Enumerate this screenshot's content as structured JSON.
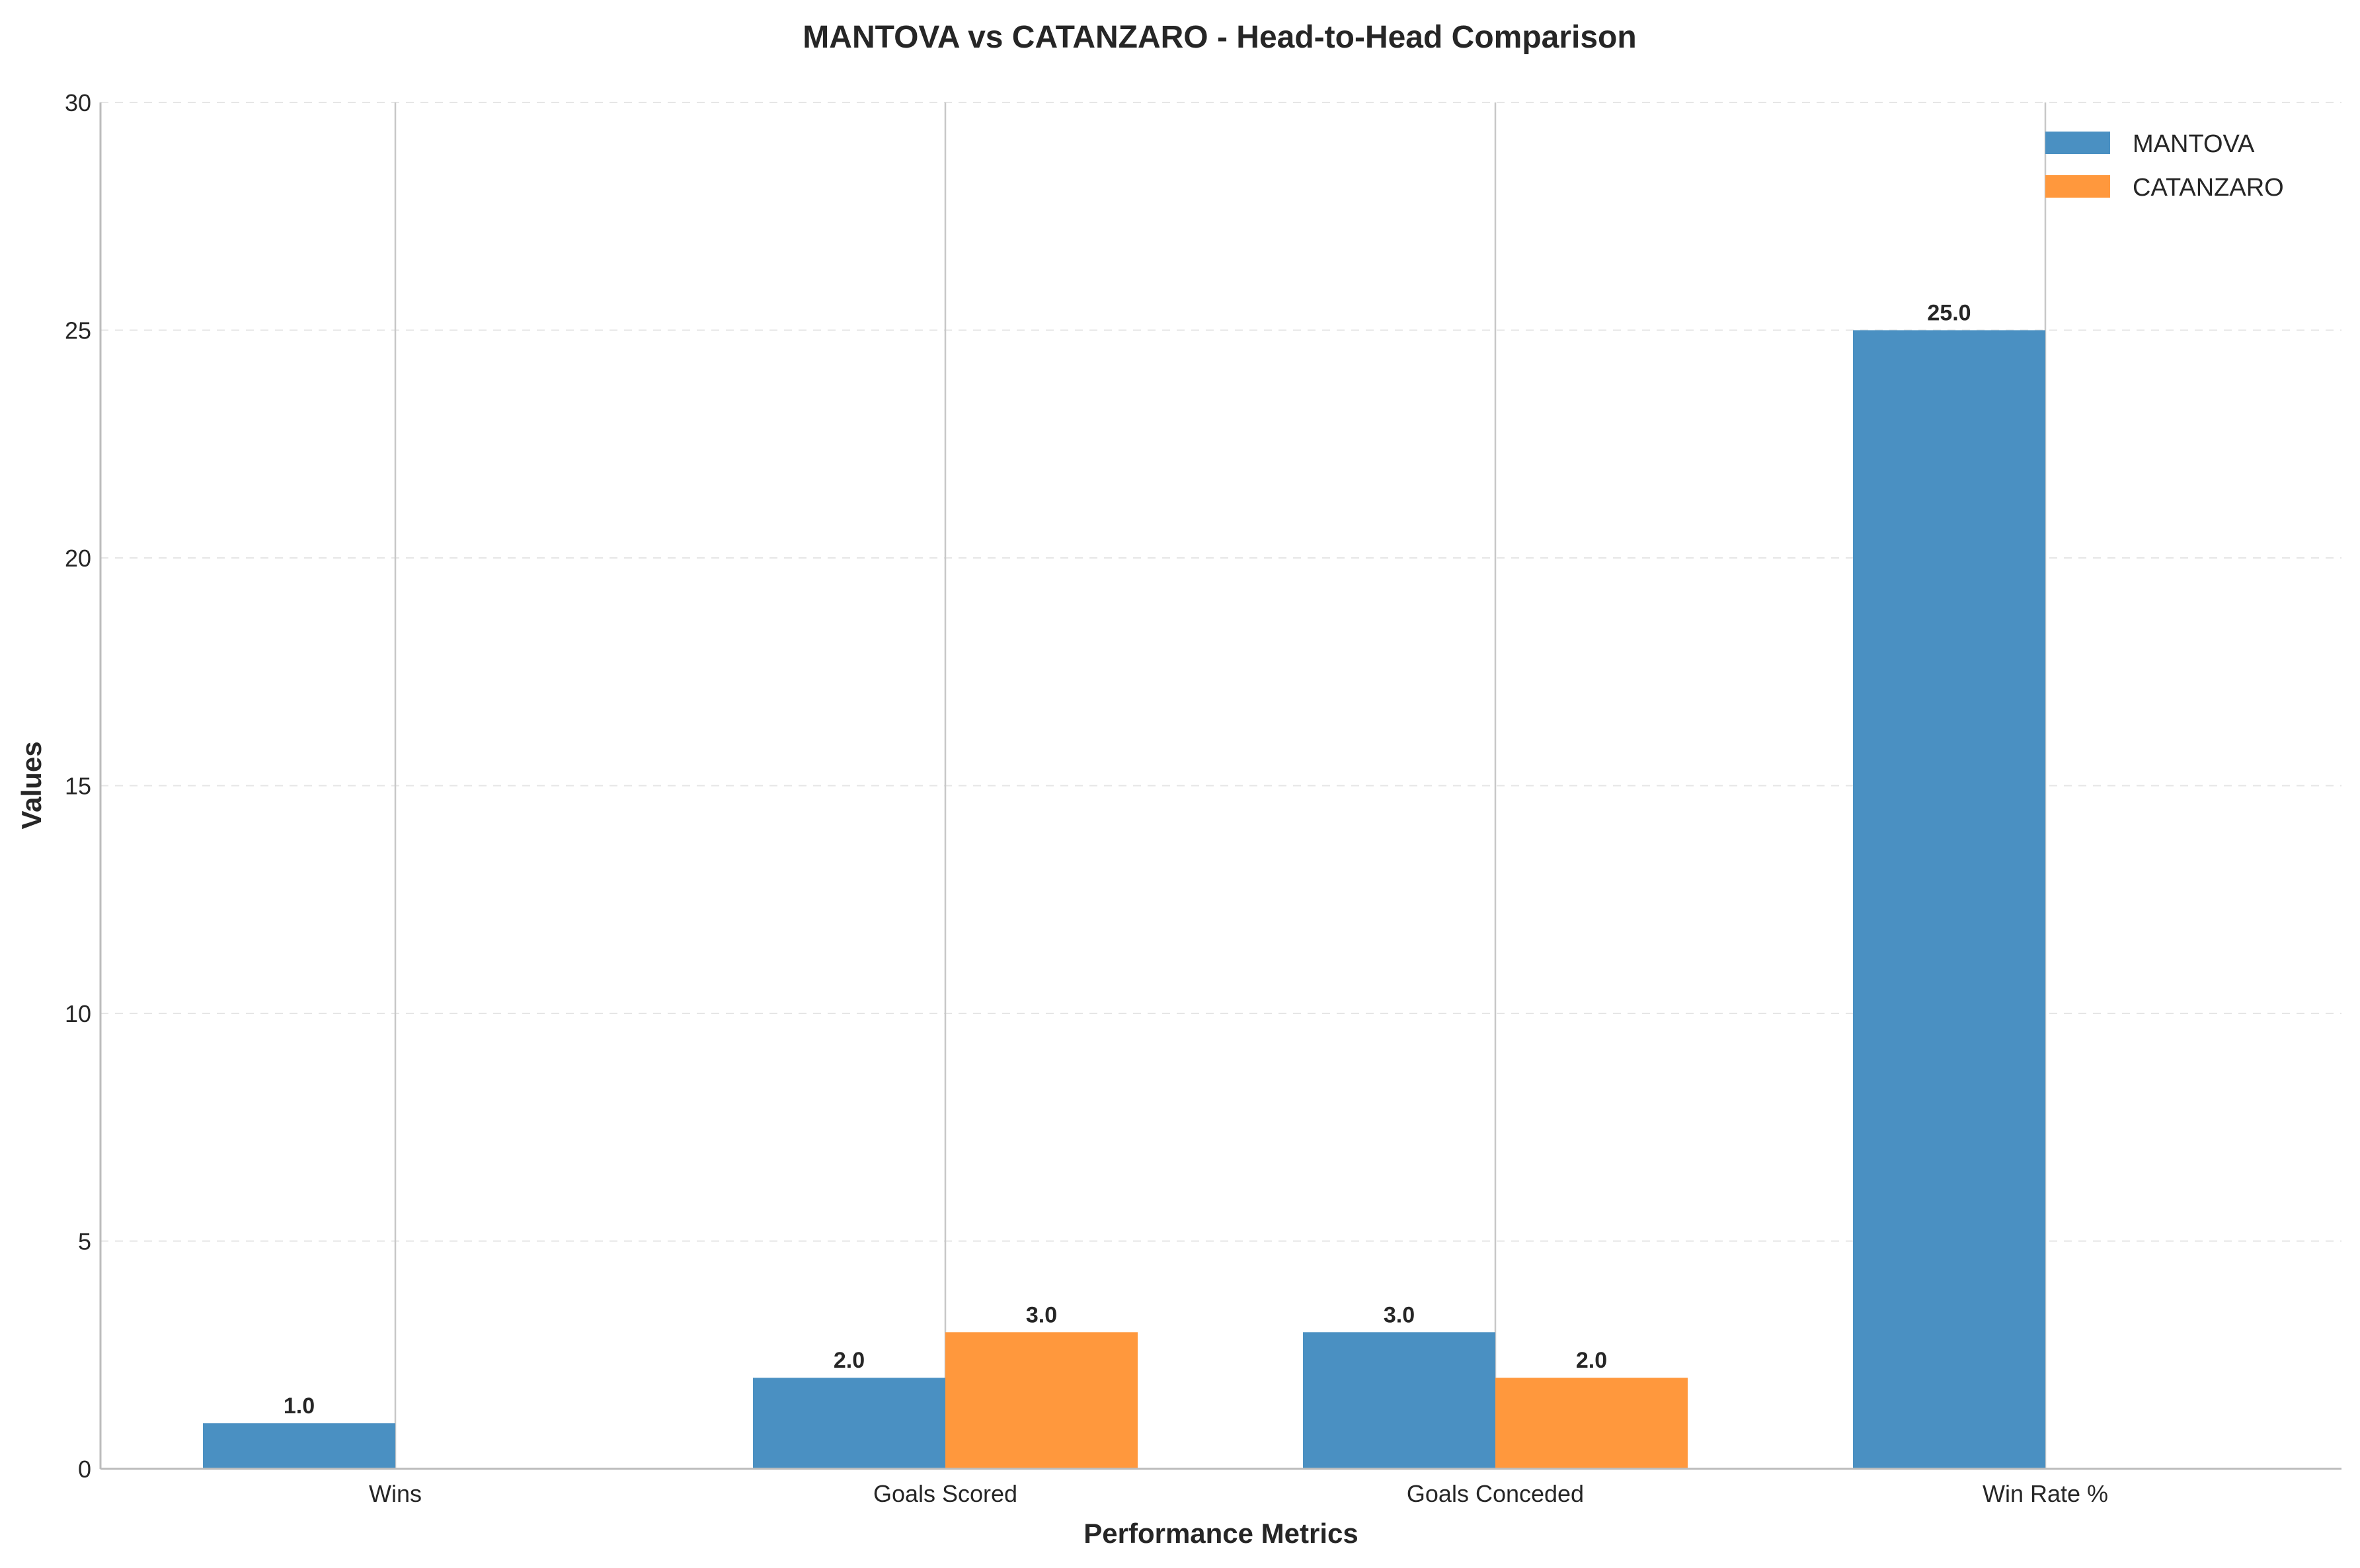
{
  "chart_data": {
    "type": "bar",
    "title": "MANTOVA vs CATANZARO - Head-to-Head Comparison",
    "xlabel": "Performance Metrics",
    "ylabel": "Values",
    "categories": [
      "Wins",
      "Goals Scored",
      "Goals Conceded",
      "Win Rate %"
    ],
    "series": [
      {
        "name": "MANTOVA",
        "color": "#4a90c2",
        "values": [
          1.0,
          2.0,
          3.0,
          25.0
        ],
        "labels": [
          "1.0",
          "2.0",
          "3.0",
          "25.0"
        ]
      },
      {
        "name": "CATANZARO",
        "color": "#ff983d",
        "values": [
          0,
          3.0,
          2.0,
          0
        ],
        "labels": [
          "",
          "3.0",
          "2.0",
          ""
        ]
      }
    ],
    "ylim": [
      0,
      30
    ],
    "yticks": [
      "0",
      "5",
      "10",
      "15",
      "20",
      "25",
      "30"
    ],
    "grid": true,
    "legend_position": "top-right"
  }
}
